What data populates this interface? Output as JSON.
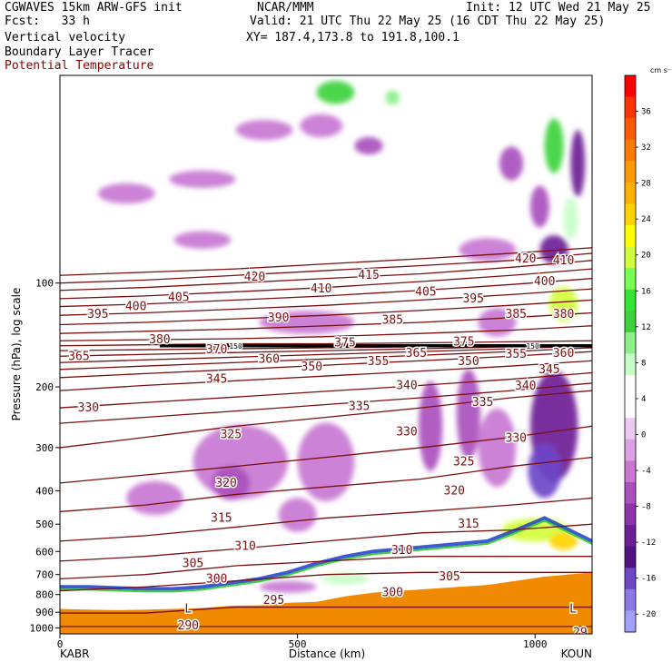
{
  "header": {
    "line1_left": "CGWAVES 15km ARW-GFS init",
    "line1_center": "NCAR/MMM",
    "line1_right": "Init: 12 UTC Wed 21 May 25",
    "line2_left": "Fcst:   33 h",
    "line2_right": "Valid: 21 UTC Thu 22 May 25 (16 CDT Thu 22 May 25)",
    "line3_left": "Vertical velocity",
    "line3_right": "XY= 187.4,173.8 to 191.8,100.1",
    "line4_left": "Boundary Layer Tracer",
    "line5_left": "Potential Temperature"
  },
  "colors": {
    "theta_line": "#7a1010",
    "terrain": "#f08a00",
    "title_theta": "#8b0000"
  },
  "chart_data": {
    "type": "heatmap",
    "title": "Vertical velocity",
    "xlabel": "Distance (km)",
    "ylabel": "Pressure (hPa), log scale",
    "x_ticks": [
      0,
      500,
      1000
    ],
    "xlim": [
      0,
      1120
    ],
    "endpoints": {
      "left": "KABR",
      "right": "KOUN"
    },
    "y_scale": "log",
    "ylim": [
      1040,
      25
    ],
    "y_ticks": [
      100,
      200,
      300,
      400,
      500,
      600,
      700,
      800,
      900,
      1000
    ],
    "colorbar": {
      "unit": "cm s⁻¹",
      "tick_labels": [
        36,
        32,
        28,
        24,
        20,
        16,
        12,
        8,
        4,
        0,
        -4,
        -8,
        -12,
        -16,
        -20
      ],
      "colors": [
        "#ff0000",
        "#ff3300",
        "#ff5a00",
        "#ff7800",
        "#ff9a00",
        "#ffb000",
        "#ffd200",
        "#ffff00",
        "#d2ff3c",
        "#78ff50",
        "#32e632",
        "#3cd23c",
        "#8cf08c",
        "#c8ffc8",
        "#ffffff",
        "#ffffff",
        "#ebc8f0",
        "#dca0e6",
        "#c878d2",
        "#aa50be",
        "#8c32aa",
        "#6e1e96",
        "#501482",
        "#6e46c8",
        "#8c78e6",
        "#a0a0ff"
      ],
      "min": -22,
      "max": 40
    },
    "theta_isentropes": [
      {
        "theta": 290,
        "p": [
          990,
          990,
          990,
          990,
          990,
          990,
          990
        ]
      },
      {
        "theta": 295,
        "p": [
          905,
          905,
          870,
          870,
          870,
          870,
          870
        ]
      },
      {
        "theta": 300,
        "p": [
          780,
          760,
          730,
          700,
          690,
          690,
          690
        ]
      },
      {
        "theta": 305,
        "p": [
          720,
          700,
          660,
          640,
          620,
          620,
          620
        ]
      },
      {
        "theta": 310,
        "p": [
          640,
          620,
          590,
          560,
          530,
          520,
          500
        ]
      },
      {
        "theta": 315,
        "p": [
          560,
          540,
          510,
          480,
          460,
          440,
          420
        ]
      },
      {
        "theta": 320,
        "p": [
          460,
          440,
          410,
          390,
          370,
          340,
          320
        ]
      },
      {
        "theta": 325,
        "p": [
          380,
          360,
          340,
          320,
          300,
          280,
          260
        ]
      },
      {
        "theta": 330,
        "p": [
          300,
          280,
          260,
          245,
          230,
          215,
          205
        ]
      },
      {
        "theta": 335,
        "p": [
          255,
          245,
          235,
          225,
          215,
          205,
          195
        ]
      },
      {
        "theta": 340,
        "p": [
          230,
          222,
          214,
          206,
          198,
          190,
          182
        ]
      },
      {
        "theta": 345,
        "p": [
          205,
          198,
          192,
          186,
          180,
          174,
          168
        ]
      },
      {
        "theta": 350,
        "p": [
          188,
          183,
          178,
          173,
          168,
          163,
          158
        ]
      },
      {
        "theta": 355,
        "p": [
          178,
          174,
          170,
          166,
          162,
          158,
          154
        ]
      },
      {
        "theta": 360,
        "p": [
          170,
          167,
          164,
          161,
          158,
          155,
          152
        ]
      },
      {
        "theta": 365,
        "p": [
          163,
          161,
          159,
          157,
          155,
          153,
          151
        ]
      },
      {
        "theta": 370,
        "p": [
          157,
          156,
          155,
          154,
          153,
          152,
          151
        ]
      },
      {
        "theta": 375,
        "p": [
          152,
          151,
          150,
          150,
          149,
          148,
          147
        ]
      },
      {
        "theta": 380,
        "p": [
          147,
          146,
          145,
          143,
          140,
          137,
          133
        ]
      },
      {
        "theta": 385,
        "p": [
          140,
          138,
          136,
          133,
          130,
          126,
          122
        ]
      },
      {
        "theta": 390,
        "p": [
          132,
          130,
          127,
          124,
          120,
          116,
          112
        ]
      },
      {
        "theta": 395,
        "p": [
          124,
          122,
          119,
          116,
          112,
          108,
          104
        ]
      },
      {
        "theta": 400,
        "p": [
          117,
          115,
          112,
          109,
          105,
          101,
          97
        ]
      },
      {
        "theta": 405,
        "p": [
          111,
          109,
          106,
          103,
          99,
          95,
          91
        ]
      },
      {
        "theta": 410,
        "p": [
          105,
          103,
          100,
          97,
          94,
          90,
          86
        ]
      },
      {
        "theta": 415,
        "p": [
          100,
          98,
          95,
          92,
          89,
          86,
          82
        ]
      },
      {
        "theta": 420,
        "p": [
          95,
          93,
          91,
          88,
          85,
          82,
          79
        ]
      }
    ],
    "theta_x": [
      0,
      180,
      370,
      560,
      760,
      950,
      1120
    ],
    "theta_labels": [
      {
        "text": "420",
        "x": 410,
        "p": 96
      },
      {
        "text": "415",
        "x": 650,
        "p": 95
      },
      {
        "text": "420",
        "x": 980,
        "p": 85
      },
      {
        "text": "410",
        "x": 1060,
        "p": 86
      },
      {
        "text": "410",
        "x": 550,
        "p": 104
      },
      {
        "text": "405",
        "x": 770,
        "p": 106
      },
      {
        "text": "400",
        "x": 1020,
        "p": 99
      },
      {
        "text": "395",
        "x": 80,
        "p": 123
      },
      {
        "text": "400",
        "x": 160,
        "p": 117
      },
      {
        "text": "405",
        "x": 250,
        "p": 110
      },
      {
        "text": "395",
        "x": 870,
        "p": 111
      },
      {
        "text": "390",
        "x": 460,
        "p": 126
      },
      {
        "text": "385",
        "x": 700,
        "p": 128
      },
      {
        "text": "385",
        "x": 960,
        "p": 123
      },
      {
        "text": "380",
        "x": 1060,
        "p": 123
      },
      {
        "text": "375",
        "x": 600,
        "p": 149
      },
      {
        "text": "375",
        "x": 850,
        "p": 148
      },
      {
        "text": "380",
        "x": 210,
        "p": 146
      },
      {
        "text": "370",
        "x": 330,
        "p": 156
      },
      {
        "text": "365",
        "x": 750,
        "p": 160
      },
      {
        "text": "360",
        "x": 1060,
        "p": 160
      },
      {
        "text": "365",
        "x": 40,
        "p": 163
      },
      {
        "text": "360",
        "x": 440,
        "p": 166
      },
      {
        "text": "350",
        "x": 530,
        "p": 175
      },
      {
        "text": "355",
        "x": 670,
        "p": 169
      },
      {
        "text": "350",
        "x": 860,
        "p": 169
      },
      {
        "text": "355",
        "x": 960,
        "p": 161
      },
      {
        "text": "345",
        "x": 1030,
        "p": 178
      },
      {
        "text": "345",
        "x": 330,
        "p": 190
      },
      {
        "text": "340",
        "x": 730,
        "p": 198
      },
      {
        "text": "340",
        "x": 980,
        "p": 199
      },
      {
        "text": "335",
        "x": 630,
        "p": 228
      },
      {
        "text": "335",
        "x": 890,
        "p": 222
      },
      {
        "text": "330",
        "x": 60,
        "p": 230
      },
      {
        "text": "330",
        "x": 730,
        "p": 270
      },
      {
        "text": "330",
        "x": 960,
        "p": 282
      },
      {
        "text": "325",
        "x": 360,
        "p": 275
      },
      {
        "text": "325",
        "x": 850,
        "p": 330
      },
      {
        "text": "320",
        "x": 350,
        "p": 380
      },
      {
        "text": "320",
        "x": 830,
        "p": 400
      },
      {
        "text": "315",
        "x": 340,
        "p": 480
      },
      {
        "text": "315",
        "x": 860,
        "p": 500
      },
      {
        "text": "310",
        "x": 390,
        "p": 580
      },
      {
        "text": "310",
        "x": 720,
        "p": 595
      },
      {
        "text": "305",
        "x": 280,
        "p": 650
      },
      {
        "text": "305",
        "x": 820,
        "p": 710
      },
      {
        "text": "300",
        "x": 330,
        "p": 720
      },
      {
        "text": "300",
        "x": 700,
        "p": 790
      },
      {
        "text": "295",
        "x": 450,
        "p": 830
      },
      {
        "text": "290",
        "x": 270,
        "p": 985
      },
      {
        "text": "L",
        "x": 270,
        "p": 880
      },
      {
        "text": "L",
        "x": 1080,
        "p": 880
      },
      {
        "text": "29",
        "x": 1095,
        "p": 1030
      }
    ],
    "tropopause_p": 152,
    "tropopause_labels": [
      "150",
      "150"
    ],
    "terrain_p": [
      880,
      885,
      888,
      885,
      880,
      875,
      862,
      860,
      845,
      840,
      810,
      790,
      780,
      770,
      760,
      750,
      730,
      710,
      690
    ],
    "terrain_x": [
      0,
      60,
      120,
      180,
      240,
      300,
      360,
      420,
      480,
      540,
      600,
      660,
      720,
      780,
      840,
      900,
      960,
      1020,
      1120
    ],
    "pbl_top_p": [
      760,
      760,
      765,
      770,
      770,
      760,
      740,
      720,
      690,
      650,
      620,
      600,
      590,
      580,
      570,
      560,
      520,
      480,
      560
    ],
    "w_blobs": [
      {
        "x": 580,
        "p": 28,
        "rx": 40,
        "rp": 0.08,
        "w": 12
      },
      {
        "x": 700,
        "p": 29,
        "rx": 15,
        "rp": 0.05,
        "w": 10
      },
      {
        "x": 550,
        "p": 35,
        "rx": 45,
        "rp": 0.08,
        "w": -4
      },
      {
        "x": 430,
        "p": 36,
        "rx": 60,
        "rp": 0.07,
        "w": -4
      },
      {
        "x": 650,
        "p": 40,
        "rx": 30,
        "rp": 0.06,
        "w": -8
      },
      {
        "x": 620,
        "p": 47,
        "rx": 40,
        "rp": 0.06,
        "w": 4
      },
      {
        "x": 300,
        "p": 50,
        "rx": 70,
        "rp": 0.06,
        "w": -4
      },
      {
        "x": 140,
        "p": 55,
        "rx": 60,
        "rp": 0.07,
        "w": -4
      },
      {
        "x": 400,
        "p": 62,
        "rx": 30,
        "rp": 0.05,
        "w": 4
      },
      {
        "x": 850,
        "p": 48,
        "rx": 50,
        "rp": 0.1,
        "w": 4
      },
      {
        "x": 950,
        "p": 45,
        "rx": 25,
        "rp": 0.12,
        "w": -8
      },
      {
        "x": 1040,
        "p": 40,
        "rx": 20,
        "rp": 0.2,
        "w": 12
      },
      {
        "x": 1090,
        "p": 45,
        "rx": 15,
        "rp": 0.25,
        "w": -12
      },
      {
        "x": 1010,
        "p": 60,
        "rx": 20,
        "rp": 0.15,
        "w": -8
      },
      {
        "x": 1075,
        "p": 65,
        "rx": 15,
        "rp": 0.15,
        "w": 8
      },
      {
        "x": 1040,
        "p": 80,
        "rx": 30,
        "rp": 0.1,
        "w": -12
      },
      {
        "x": 900,
        "p": 80,
        "rx": 60,
        "rp": 0.08,
        "w": -4
      },
      {
        "x": 300,
        "p": 75,
        "rx": 60,
        "rp": 0.06,
        "w": -4
      },
      {
        "x": 560,
        "p": 80,
        "rx": 30,
        "rp": 0.05,
        "w": 4
      },
      {
        "x": 730,
        "p": 110,
        "rx": 90,
        "rp": 0.12,
        "w": 4
      },
      {
        "x": 1060,
        "p": 115,
        "rx": 30,
        "rp": 0.12,
        "w": 20
      },
      {
        "x": 520,
        "p": 130,
        "rx": 100,
        "rp": 0.08,
        "w": -4
      },
      {
        "x": 920,
        "p": 130,
        "rx": 40,
        "rp": 0.1,
        "w": -4
      },
      {
        "x": 600,
        "p": 170,
        "rx": 90,
        "rp": 0.1,
        "w": 4
      },
      {
        "x": 780,
        "p": 260,
        "rx": 25,
        "rp": 0.35,
        "w": -8
      },
      {
        "x": 860,
        "p": 240,
        "rx": 25,
        "rp": 0.35,
        "w": -8
      },
      {
        "x": 1040,
        "p": 260,
        "rx": 50,
        "rp": 0.45,
        "w": -12
      },
      {
        "x": 1020,
        "p": 350,
        "rx": 35,
        "rp": 0.2,
        "w": -16
      },
      {
        "x": 920,
        "p": 300,
        "rx": 40,
        "rp": 0.3,
        "w": -4
      },
      {
        "x": 720,
        "p": 330,
        "rx": 30,
        "rp": 0.35,
        "w": 4
      },
      {
        "x": 560,
        "p": 330,
        "rx": 60,
        "rp": 0.3,
        "w": -4
      },
      {
        "x": 380,
        "p": 330,
        "rx": 100,
        "rp": 0.28,
        "w": -4
      },
      {
        "x": 360,
        "p": 380,
        "rx": 40,
        "rp": 0.12,
        "w": -8
      },
      {
        "x": 200,
        "p": 420,
        "rx": 60,
        "rp": 0.12,
        "w": -4
      },
      {
        "x": 500,
        "p": 470,
        "rx": 40,
        "rp": 0.12,
        "w": -4
      },
      {
        "x": 1000,
        "p": 520,
        "rx": 70,
        "rp": 0.08,
        "w": 20
      },
      {
        "x": 1060,
        "p": 560,
        "rx": 30,
        "rp": 0.06,
        "w": 24
      },
      {
        "x": 600,
        "p": 720,
        "rx": 50,
        "rp": 0.04,
        "w": 8
      },
      {
        "x": 480,
        "p": 760,
        "rx": 60,
        "rp": 0.04,
        "w": -4
      },
      {
        "x": 780,
        "p": 620,
        "rx": 60,
        "rp": 0.04,
        "w": 4
      }
    ]
  }
}
